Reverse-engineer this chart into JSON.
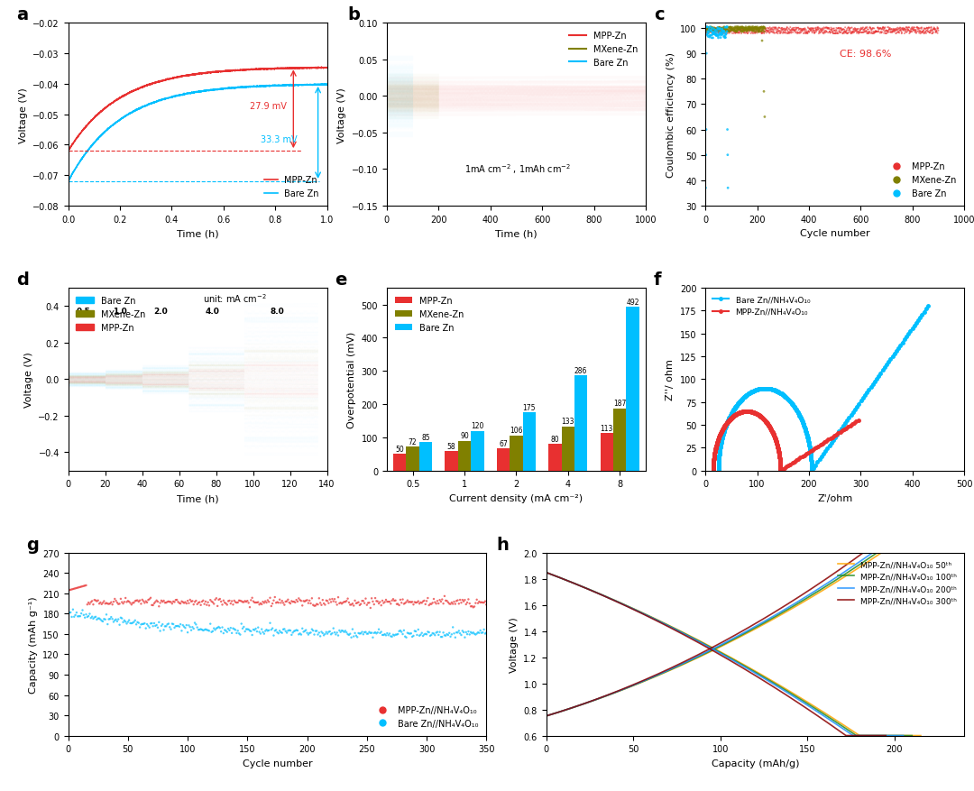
{
  "fig_width": 10.8,
  "fig_height": 8.78,
  "colors": {
    "mpp_red": "#E83030",
    "mxene_olive": "#808000",
    "bare_cyan": "#00BFFF"
  },
  "panel_a": {
    "xlim": [
      0,
      1.0
    ],
    "ylim": [
      -0.08,
      -0.02
    ],
    "xlabel": "Time (h)",
    "ylabel": "Voltage (V)",
    "mpp_plateau": -0.0345,
    "bare_plateau": -0.04,
    "mpp_initial": -0.062,
    "bare_initial": -0.072,
    "annotation_mpp": "27.9 mV",
    "annotation_bare": "33.3 mV"
  },
  "panel_b": {
    "xlim": [
      0,
      1000
    ],
    "ylim": [
      -0.15,
      0.1
    ],
    "xlabel": "Time (h)",
    "ylabel": "Voltage (V)",
    "annotation": "1mA cm⁻² , 1mAh cm⁻²"
  },
  "panel_c": {
    "xlim": [
      0,
      1000
    ],
    "ylim": [
      30,
      102
    ],
    "xlabel": "Cycle number",
    "ylabel": "Coulombic efficiency (%)",
    "annotation": "CE: 98.6%",
    "yticks": [
      30,
      40,
      50,
      60,
      70,
      80,
      90,
      100
    ]
  },
  "panel_d": {
    "xlim": [
      0,
      140
    ],
    "ylim": [
      -0.5,
      0.5
    ],
    "xlabel": "Time (h)",
    "ylabel": "Voltage (V)",
    "annotation": "unit: mA cm⁻²"
  },
  "panel_e": {
    "mpp_values": [
      50,
      58,
      67,
      80,
      113
    ],
    "mxene_values": [
      72,
      90,
      106,
      133,
      187
    ],
    "bare_values": [
      85,
      120,
      175,
      286,
      492
    ],
    "xlabel": "Current density (mA cm⁻²)",
    "ylabel": "Overpotential (mV)",
    "xlabels": [
      "0.5",
      "1",
      "2",
      "4",
      "8"
    ]
  },
  "panel_f": {
    "xlim": [
      0,
      500
    ],
    "ylim": [
      0,
      200
    ],
    "xlabel": "Z'/ohm",
    "ylabel": "Z''/ ohm",
    "label_bare": "Bare Zn//NH₄V₄O₁₀",
    "label_mpp": "MPP-Zn//NH₄V₄O₁₀"
  },
  "panel_g": {
    "xlim": [
      0,
      350
    ],
    "ylim": [
      0,
      270
    ],
    "xlabel": "Cycle number",
    "ylabel": "Capacity (mAh g⁻¹)",
    "label_mpp": "MPP-Zn//NH₄V₄O₁₀",
    "label_bare": "Bare Zn//NH₄V₄O₁₀",
    "yticks": [
      0,
      30,
      60,
      90,
      120,
      150,
      180,
      210,
      240,
      270
    ]
  },
  "panel_h": {
    "xlim": [
      0,
      240
    ],
    "ylim": [
      0.6,
      2.0
    ],
    "xlabel": "Capacity (mAh/g)",
    "ylabel": "Voltage (V)",
    "labels": [
      "MPP-Zn//NH₄V₄O₁₀ 50ᵗʰ",
      "MPP-Zn//NH₄V₄O₁₀ 100ᵗʰ",
      "MPP-Zn//NH₄V₄O₁₀ 200ᵗʰ",
      "MPP-Zn//NH₄V₄O₁₀ 300ᵗʰ"
    ],
    "colors": [
      "#FFA500",
      "#228B22",
      "#1E90FF",
      "#8B0000"
    ]
  }
}
